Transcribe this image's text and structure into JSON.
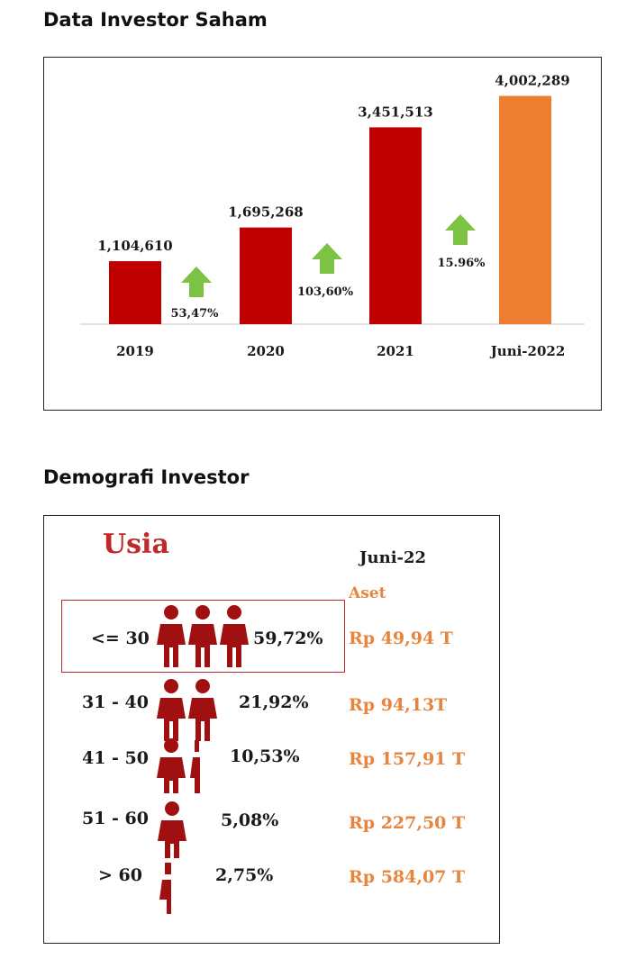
{
  "page": {
    "section1_title": "Data Investor Saham",
    "section2_title": "Demografi Investor"
  },
  "colors": {
    "bar_red": "#c00000",
    "bar_orange": "#ed7d31",
    "arrow_green": "#7cc243",
    "person_red": "#a01010",
    "highlight_border": "#c0292a",
    "asset_text": "#e8843c"
  },
  "chart_data": {
    "type": "bar",
    "categories": [
      "2019",
      "2020",
      "2021",
      "Juni-2022"
    ],
    "values": [
      1104610,
      1695268,
      3451513,
      4002289
    ],
    "value_labels": [
      "1,104,610",
      "1,695,268",
      "3,451,513",
      "4,002,289"
    ],
    "bar_colors": [
      "#c00000",
      "#c00000",
      "#c00000",
      "#ed7d31"
    ],
    "growth_labels": [
      "53,47%",
      "103,60%",
      "15.96%"
    ],
    "title": "",
    "xlabel": "",
    "ylabel": "",
    "ylim": [
      0,
      4200000
    ],
    "grid": false,
    "legend": "none"
  },
  "demographics": {
    "heading": "Usia",
    "period": "Juni-22",
    "asset_header": "Aset",
    "rows": [
      {
        "age": "<= 30",
        "percent": "59,72%",
        "share": 59.72,
        "asset": "Rp 49,94 T",
        "highlighted": true
      },
      {
        "age": "31 - 40",
        "percent": "21,92%",
        "share": 21.92,
        "asset": "Rp 94,13T",
        "highlighted": false
      },
      {
        "age": "41 - 50",
        "percent": "10,53%",
        "share": 10.53,
        "asset": "Rp 157,91 T",
        "highlighted": false
      },
      {
        "age": "51 - 60",
        "percent": "5,08%",
        "share": 5.08,
        "asset": "Rp 227,50 T",
        "highlighted": false
      },
      {
        "age": "> 60",
        "percent": "2,75%",
        "share": 2.75,
        "asset": "Rp 584,07 T",
        "highlighted": false
      }
    ]
  }
}
